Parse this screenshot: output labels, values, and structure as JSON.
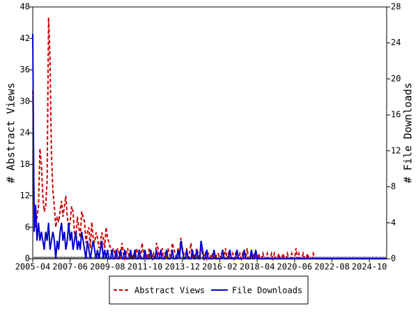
{
  "chart_data": {
    "type": "line",
    "y_label": "# Abstract Views",
    "y2_label": "# File Downloads",
    "x": [
      "2005-04",
      "2005-05",
      "2005-06",
      "2005-07",
      "2005-08",
      "2005-09",
      "2005-10",
      "2005-11",
      "2005-12",
      "2006-01",
      "2006-02",
      "2006-03",
      "2006-04",
      "2006-05",
      "2006-06",
      "2006-07",
      "2006-08",
      "2006-09",
      "2006-10",
      "2006-11",
      "2006-12",
      "2007-01",
      "2007-02",
      "2007-03",
      "2007-04",
      "2007-05",
      "2007-06",
      "2007-07",
      "2007-08",
      "2007-09",
      "2007-10",
      "2007-11",
      "2007-12",
      "2008-01",
      "2008-02",
      "2008-03",
      "2008-04",
      "2008-05",
      "2008-06",
      "2008-07",
      "2008-08",
      "2008-09",
      "2008-10",
      "2008-11",
      "2008-12",
      "2009-01",
      "2009-02",
      "2009-03",
      "2009-04",
      "2009-05",
      "2009-06",
      "2009-07",
      "2009-08",
      "2009-09",
      "2009-10",
      "2009-11",
      "2009-12",
      "2010-01",
      "2010-02",
      "2010-03",
      "2010-04",
      "2010-05",
      "2010-06",
      "2010-07",
      "2010-08",
      "2010-09",
      "2010-10",
      "2010-11",
      "2010-12",
      "2011-01",
      "2011-02",
      "2011-03",
      "2011-04",
      "2011-05",
      "2011-06",
      "2011-07",
      "2011-08",
      "2011-09",
      "2011-10",
      "2011-11",
      "2011-12",
      "2012-01",
      "2012-02",
      "2012-03",
      "2012-04",
      "2012-05",
      "2012-06",
      "2012-07",
      "2012-08",
      "2012-09",
      "2012-10",
      "2012-11",
      "2012-12",
      "2013-01",
      "2013-02",
      "2013-03",
      "2013-04",
      "2013-05",
      "2013-06",
      "2013-07",
      "2013-08",
      "2013-09",
      "2013-10",
      "2013-11",
      "2013-12",
      "2014-01",
      "2014-02",
      "2014-03",
      "2014-04",
      "2014-05",
      "2014-06",
      "2014-07",
      "2014-08",
      "2014-09",
      "2014-10",
      "2014-11",
      "2014-12",
      "2015-01",
      "2015-02",
      "2015-03",
      "2015-04",
      "2015-05",
      "2015-06",
      "2015-07",
      "2015-08",
      "2015-09",
      "2015-10",
      "2015-11",
      "2015-12",
      "2016-01",
      "2016-02",
      "2016-03",
      "2016-04",
      "2016-05",
      "2016-06",
      "2016-07",
      "2016-08",
      "2016-09",
      "2016-10",
      "2016-11",
      "2016-12",
      "2017-01",
      "2017-02",
      "2017-03",
      "2017-04",
      "2017-05",
      "2017-06",
      "2017-07",
      "2017-08",
      "2017-09",
      "2017-10",
      "2017-11",
      "2017-12",
      "2018-01",
      "2018-02",
      "2018-03",
      "2018-04",
      "2018-05",
      "2018-06",
      "2018-07",
      "2018-08",
      "2018-09",
      "2018-10",
      "2018-11",
      "2018-12",
      "2019-01",
      "2019-02",
      "2019-03",
      "2019-04",
      "2019-05",
      "2019-06",
      "2019-07",
      "2019-08",
      "2019-09",
      "2019-10",
      "2019-11",
      "2019-12",
      "2020-01",
      "2020-02",
      "2020-03",
      "2020-04",
      "2020-05",
      "2020-06",
      "2020-07",
      "2020-08",
      "2020-09",
      "2020-10",
      "2020-11",
      "2020-12",
      "2021-01",
      "2021-02",
      "2021-03",
      "2021-04",
      "2021-05",
      "2021-06",
      "2021-07",
      "2021-08",
      "2021-09",
      "2021-10",
      "2021-11",
      "2021-12",
      "2022-01",
      "2022-02",
      "2022-03",
      "2022-04",
      "2022-05",
      "2022-06",
      "2022-07",
      "2022-08",
      "2022-09",
      "2022-10",
      "2022-11",
      "2022-12",
      "2023-01",
      "2023-02",
      "2023-03",
      "2023-04",
      "2023-05",
      "2023-06",
      "2023-07",
      "2023-08",
      "2023-09",
      "2023-10",
      "2023-11",
      "2023-12",
      "2024-01",
      "2024-02",
      "2024-03",
      "2024-04",
      "2024-05",
      "2024-06",
      "2024-07",
      "2024-08",
      "2024-09",
      "2024-10",
      "2024-11",
      "2024-12",
      "2025-01",
      "2025-02",
      "2025-03",
      "2025-04",
      "2025-05",
      "2025-06",
      "2025-07",
      "2025-08",
      "2025-09",
      "2025-10"
    ],
    "series": [
      {
        "name": "Abstract Views",
        "color": "#cc0000",
        "dash": true,
        "values": [
          32,
          9,
          6,
          8,
          10,
          21,
          18,
          12,
          9,
          10,
          15,
          46,
          38,
          20,
          13,
          10,
          6,
          8,
          7,
          9,
          11,
          8,
          10,
          12,
          8,
          6,
          7,
          10,
          9,
          5,
          4,
          8,
          6,
          4,
          9,
          8,
          7,
          3,
          5,
          6,
          2,
          7,
          4,
          3,
          5,
          4,
          2,
          3,
          5,
          4,
          2,
          6,
          4,
          3,
          2,
          1,
          2,
          1,
          0,
          2,
          1,
          0,
          3,
          1,
          0,
          1,
          2,
          0,
          1,
          0,
          1,
          0,
          2,
          1,
          0,
          0,
          3,
          1,
          0,
          1,
          0,
          2,
          1,
          0,
          1,
          0,
          3,
          2,
          0,
          1,
          2,
          0,
          1,
          0,
          2,
          1,
          0,
          3,
          2,
          1,
          0,
          2,
          1,
          4,
          2,
          1,
          0,
          2,
          0,
          1,
          3,
          0,
          1,
          0,
          2,
          1,
          0,
          2,
          1,
          0,
          1,
          0,
          1,
          1,
          0,
          1,
          0,
          0,
          1,
          1,
          0,
          1,
          1,
          0,
          2,
          0,
          1,
          0,
          0,
          1,
          0,
          1,
          0,
          0,
          1,
          0,
          1,
          0,
          0,
          2,
          0,
          0,
          1,
          0,
          1,
          0,
          0,
          1,
          0,
          0,
          1,
          0,
          0,
          1,
          0,
          0,
          1,
          0,
          1,
          0,
          0,
          1,
          0,
          0,
          1,
          0,
          0,
          1,
          0,
          0,
          1,
          0,
          0,
          2,
          0,
          1,
          0,
          0,
          1,
          0,
          0,
          1,
          0,
          0,
          0,
          1,
          0,
          0,
          0,
          0,
          0,
          0,
          0,
          0,
          0,
          0,
          0,
          0,
          0,
          0,
          0,
          0,
          0,
          0,
          0,
          0,
          0,
          0,
          0,
          0,
          0,
          0,
          0,
          0,
          0,
          0,
          0,
          0,
          0,
          0,
          0,
          0,
          0,
          0,
          0,
          0,
          0,
          0,
          0,
          0,
          0,
          0,
          0,
          0,
          0,
          0,
          0
        ]
      },
      {
        "name": "File Downloads",
        "color": "#0000cc",
        "axis": "y2",
        "values": [
          25,
          3,
          6,
          2,
          4,
          2,
          3,
          2,
          1,
          3,
          2,
          4,
          1,
          2,
          3,
          2,
          0,
          2,
          1,
          3,
          4,
          2,
          3,
          1,
          2,
          4,
          2,
          3,
          1,
          2,
          3,
          1,
          2,
          1,
          3,
          2,
          1,
          0,
          2,
          1,
          0,
          1,
          2,
          1,
          0,
          1,
          0,
          1,
          2,
          0,
          1,
          0,
          1,
          0,
          0,
          1,
          0,
          0,
          1,
          0,
          0,
          1,
          0,
          0,
          1,
          0,
          0,
          0,
          1,
          0,
          0,
          1,
          0,
          0,
          1,
          0,
          0,
          0,
          1,
          0,
          0,
          0,
          1,
          0,
          0,
          0,
          1,
          0,
          0,
          1,
          0,
          0,
          0,
          1,
          0,
          0,
          0,
          1,
          0,
          0,
          0,
          1,
          0,
          2,
          1,
          0,
          0,
          1,
          0,
          0,
          0,
          1,
          0,
          0,
          1,
          0,
          0,
          2,
          1,
          0,
          0,
          1,
          0,
          0,
          0,
          0,
          1,
          0,
          0,
          0,
          0,
          0,
          1,
          0,
          0,
          0,
          0,
          1,
          0,
          0,
          0,
          0,
          1,
          0,
          0,
          0,
          0,
          1,
          0,
          0,
          0,
          0,
          1,
          0,
          0,
          1,
          0,
          0,
          0,
          0,
          0,
          0,
          0,
          0,
          0,
          0,
          0,
          0,
          0,
          0,
          0,
          0,
          0,
          0,
          0,
          0,
          0,
          0,
          0,
          0,
          0,
          0,
          0,
          0,
          0,
          0,
          0,
          0,
          0,
          0,
          0,
          0,
          0,
          0,
          0,
          0,
          0,
          0,
          0,
          0,
          0,
          0,
          0,
          0,
          0,
          0,
          0,
          0,
          0,
          0,
          0,
          0,
          0,
          0,
          0,
          0,
          0,
          0,
          0,
          0,
          0,
          0,
          0,
          0,
          0,
          0,
          0,
          0,
          0,
          0,
          0,
          0,
          0,
          0,
          0,
          0,
          0,
          0,
          0,
          0,
          0,
          0,
          0,
          0,
          0,
          0,
          0
        ]
      }
    ],
    "xlim": [
      "2005-04",
      "2025-10"
    ],
    "xticks": [
      "2005-04",
      "2007-06",
      "2009-08",
      "2011-10",
      "2013-12",
      "2016-02",
      "2018-04",
      "2020-06",
      "2022-08",
      "2024-10"
    ],
    "ylim": [
      0,
      48
    ],
    "yticks": [
      0,
      6,
      12,
      18,
      24,
      30,
      36,
      42,
      48
    ],
    "y2lim": [
      0,
      28
    ],
    "y2ticks": [
      0,
      4,
      8,
      12,
      16,
      20,
      24,
      28
    ],
    "legend": "bottom"
  }
}
